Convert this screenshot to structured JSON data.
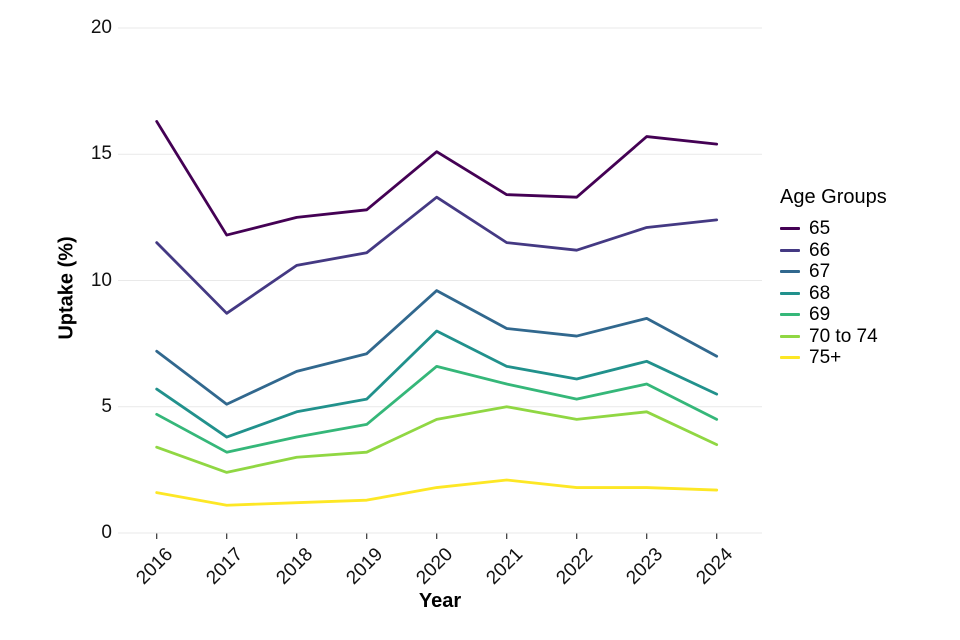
{
  "chart_data": {
    "type": "line",
    "title": "",
    "xlabel": "Year",
    "ylabel": "Uptake (%)",
    "categories": [
      "2016",
      "2017",
      "2018",
      "2019",
      "2020",
      "2021",
      "2022",
      "2023",
      "2024"
    ],
    "y_ticks": [
      "0",
      "5",
      "10",
      "15",
      "20"
    ],
    "ylim": [
      0,
      20
    ],
    "grid": "horizontal-major-only",
    "legend_title": "Age Groups",
    "legend_position": "right",
    "series": [
      {
        "name": "65",
        "color": "#440154",
        "values": [
          16.3,
          11.8,
          12.5,
          12.8,
          15.1,
          13.4,
          13.3,
          15.7,
          15.4
        ]
      },
      {
        "name": "66",
        "color": "#443983",
        "values": [
          11.5,
          8.7,
          10.6,
          11.1,
          13.3,
          11.5,
          11.2,
          12.1,
          12.4
        ]
      },
      {
        "name": "67",
        "color": "#31688e",
        "values": [
          7.2,
          5.1,
          6.4,
          7.1,
          9.6,
          8.1,
          7.8,
          8.5,
          7.0
        ]
      },
      {
        "name": "68",
        "color": "#21918c",
        "values": [
          5.7,
          3.8,
          4.8,
          5.3,
          8.0,
          6.6,
          6.1,
          6.8,
          5.5
        ]
      },
      {
        "name": "69",
        "color": "#35b779",
        "values": [
          4.7,
          3.2,
          3.8,
          4.3,
          6.6,
          5.9,
          5.3,
          5.9,
          4.5
        ]
      },
      {
        "name": "70 to 74",
        "color": "#90d743",
        "values": [
          3.4,
          2.4,
          3.0,
          3.2,
          4.5,
          5.0,
          4.5,
          4.8,
          3.5
        ]
      },
      {
        "name": "75+",
        "color": "#fde725",
        "values": [
          1.6,
          1.1,
          1.2,
          1.3,
          1.8,
          2.1,
          1.8,
          1.8,
          1.7
        ]
      }
    ]
  }
}
